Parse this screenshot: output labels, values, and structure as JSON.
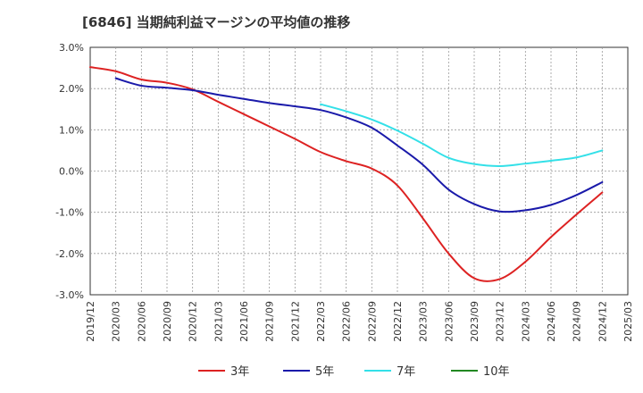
{
  "chart_data": {
    "type": "line",
    "title": "[6846]  当期純利益マージンの平均値の推移",
    "xlabel": "",
    "ylabel": "",
    "x_ticks": [
      "2019/12",
      "2020/03",
      "2020/06",
      "2020/09",
      "2020/12",
      "2021/03",
      "2021/06",
      "2021/09",
      "2021/12",
      "2022/03",
      "2022/06",
      "2022/09",
      "2022/12",
      "2023/03",
      "2023/06",
      "2023/09",
      "2023/12",
      "2024/03",
      "2024/06",
      "2024/09",
      "2024/12",
      "2025/03"
    ],
    "y_ticks": [
      "3.0%",
      "2.0%",
      "1.0%",
      "0.0%",
      "-1.0%",
      "-2.0%",
      "-3.0%"
    ],
    "ylim": [
      -3.0,
      3.0
    ],
    "grid": true,
    "legend_position": "bottom",
    "series": [
      {
        "name": "3年",
        "color": "#dd2222",
        "x": [
          "2019/12",
          "2020/03",
          "2020/06",
          "2020/09",
          "2020/12",
          "2021/03",
          "2021/06",
          "2021/09",
          "2021/12",
          "2022/03",
          "2022/06",
          "2022/09",
          "2022/12",
          "2023/03",
          "2023/06",
          "2023/09",
          "2023/12",
          "2024/03",
          "2024/06",
          "2024/09",
          "2024/12"
        ],
        "values": [
          2.52,
          2.42,
          2.22,
          2.14,
          1.98,
          1.68,
          1.38,
          1.08,
          0.78,
          0.46,
          0.24,
          0.06,
          -0.35,
          -1.15,
          -2.0,
          -2.6,
          -2.62,
          -2.2,
          -1.6,
          -1.05,
          -0.52
        ]
      },
      {
        "name": "5年",
        "color": "#1a1aaa",
        "x": [
          "2020/03",
          "2020/06",
          "2020/09",
          "2020/12",
          "2021/03",
          "2021/06",
          "2021/09",
          "2021/12",
          "2022/03",
          "2022/06",
          "2022/09",
          "2022/12",
          "2023/03",
          "2023/06",
          "2023/09",
          "2023/12",
          "2024/03",
          "2024/06",
          "2024/09",
          "2024/12"
        ],
        "values": [
          2.25,
          2.07,
          2.02,
          1.96,
          1.85,
          1.75,
          1.65,
          1.57,
          1.48,
          1.3,
          1.05,
          0.62,
          0.15,
          -0.45,
          -0.8,
          -0.98,
          -0.95,
          -0.82,
          -0.58,
          -0.27
        ]
      },
      {
        "name": "7年",
        "color": "#33e0e8",
        "x": [
          "2022/03",
          "2022/06",
          "2022/09",
          "2022/12",
          "2023/03",
          "2023/06",
          "2023/09",
          "2023/12",
          "2024/03",
          "2024/06",
          "2024/09",
          "2024/12"
        ],
        "values": [
          1.62,
          1.45,
          1.25,
          0.98,
          0.66,
          0.32,
          0.17,
          0.12,
          0.18,
          0.25,
          0.33,
          0.5
        ]
      },
      {
        "name": "10年",
        "color": "#228822",
        "x": [],
        "values": []
      }
    ]
  }
}
